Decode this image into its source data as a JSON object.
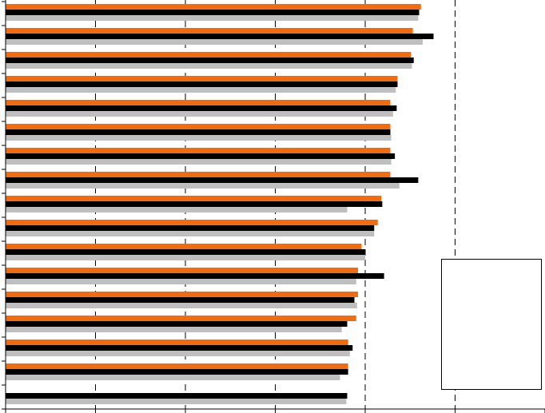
{
  "chart_data": {
    "type": "barh",
    "categories": [
      null,
      null,
      null,
      null,
      null,
      null,
      null,
      null,
      null,
      null,
      null,
      null,
      null,
      null,
      null,
      null,
      null
    ],
    "series": [
      {
        "color": "#f26b0f",
        "values": [
          4.62,
          4.53,
          4.51,
          4.36,
          4.28,
          4.28,
          4.28,
          4.28,
          4.18,
          4.14,
          3.96,
          3.92,
          3.92,
          3.9,
          3.81,
          3.81,
          null
        ]
      },
      {
        "color": "#000000",
        "values": [
          4.6,
          4.76,
          4.54,
          4.36,
          4.35,
          4.28,
          4.33,
          4.59,
          4.19,
          4.1,
          4.0,
          4.21,
          3.88,
          3.8,
          3.86,
          3.81,
          3.8
        ]
      },
      {
        "color": "#bfbfbf",
        "values": [
          4.59,
          4.64,
          4.52,
          4.34,
          4.31,
          4.29,
          4.29,
          4.38,
          3.8,
          4.1,
          4.0,
          3.9,
          3.91,
          3.74,
          3.83,
          3.72,
          3.79
        ]
      }
    ],
    "xlim": [
      0,
      6
    ],
    "xticks": [
      0,
      1,
      2,
      3,
      4,
      5,
      6
    ],
    "grid": true,
    "legend": "lower right"
  }
}
